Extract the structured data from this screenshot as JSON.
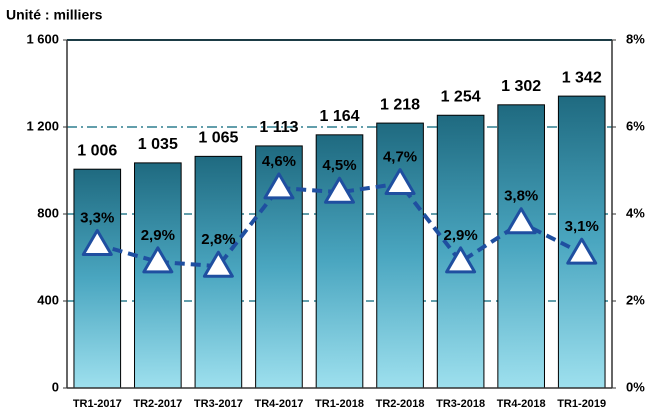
{
  "chart_data": {
    "type": "bar-line",
    "title": "Unité : milliers",
    "categories": [
      "TR1-2017",
      "TR2-2017",
      "TR3-2017",
      "TR4-2017",
      "TR1-2018",
      "TR2-2018",
      "TR3-2018",
      "TR4-2018",
      "TR1-2019"
    ],
    "series": [
      {
        "type": "bar",
        "color": "#1f6a80",
        "values": [
          1006,
          1035,
          1065,
          1113,
          1164,
          1218,
          1254,
          1302,
          1342
        ],
        "value_labels": [
          "1 006",
          "1 035",
          "1 065",
          "1 113",
          "1 164",
          "1 218",
          "1 254",
          "1 302",
          "1 342"
        ]
      },
      {
        "type": "line",
        "axis": "y2",
        "color": "#1f4fa0",
        "values": [
          3.3,
          2.9,
          2.8,
          4.6,
          4.5,
          4.7,
          2.9,
          3.8,
          3.1
        ],
        "value_labels": [
          "3,3%",
          "2,9%",
          "2,8%",
          "4,6%",
          "4,5%",
          "4,7%",
          "2,9%",
          "3,8%",
          "3,1%"
        ]
      }
    ],
    "ylim": [
      0,
      1600
    ],
    "yticks": [
      0,
      400,
      800,
      {
        "value": 1200,
        "label": "1 200"
      },
      {
        "value": 1600,
        "label": "1 600"
      }
    ],
    "y2lim": [
      0,
      8
    ],
    "y2ticks": [
      {
        "value": 0,
        "label": "0%"
      },
      {
        "value": 2,
        "label": "2%"
      },
      {
        "value": 4,
        "label": "4%"
      },
      {
        "value": 6,
        "label": "6%"
      },
      {
        "value": 8,
        "label": "8%"
      }
    ],
    "grid": true
  }
}
